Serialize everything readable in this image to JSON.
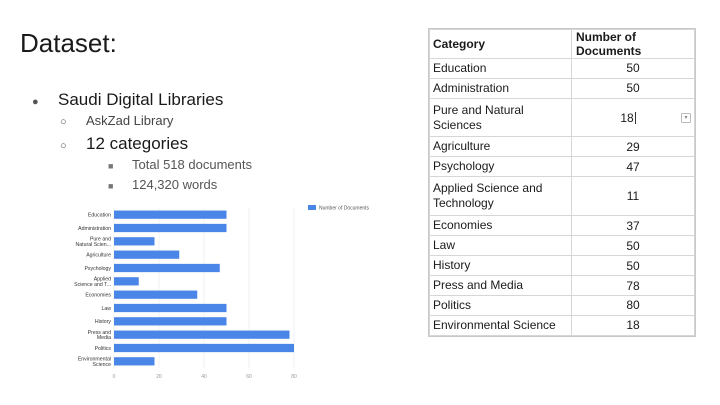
{
  "slide": {
    "title": "Dataset:",
    "bullets": {
      "level1": "Saudi Digital Libraries",
      "level2_first": "AskZad Library",
      "level2_second": "12 categories",
      "level3_first": "Total 518 documents",
      "level3_second": "124,320 words"
    },
    "markers": {
      "disc": "●",
      "circle": "○",
      "square": "■"
    }
  },
  "table": {
    "headers": [
      "Category",
      "Number of Documents"
    ],
    "rows": [
      {
        "category": "Education",
        "count": "50"
      },
      {
        "category": "Administration",
        "count": "50"
      },
      {
        "category": "Pure and Natural Sciences",
        "count": "18"
      },
      {
        "category": "Agriculture",
        "count": "29"
      },
      {
        "category": "Psychology",
        "count": "47"
      },
      {
        "category": "Applied Science and Technology",
        "count": "11"
      },
      {
        "category": "Economies",
        "count": "37"
      },
      {
        "category": "Law",
        "count": "50"
      },
      {
        "category": "History",
        "count": "50"
      },
      {
        "category": "Press and Media",
        "count": "78"
      },
      {
        "category": "Politics",
        "count": "80"
      },
      {
        "category": "Environmental Science",
        "count": "18"
      }
    ],
    "selected_row": 2
  },
  "chart_data": {
    "type": "bar",
    "orientation": "horizontal",
    "categories": [
      [
        "Education"
      ],
      [
        "Administration"
      ],
      [
        "Pure and",
        "Natural Scien..."
      ],
      [
        "Agriculture"
      ],
      [
        "Psychology"
      ],
      [
        "Applied",
        "Science and T..."
      ],
      [
        "Economies"
      ],
      [
        "Law"
      ],
      [
        "History"
      ],
      [
        "Press and",
        "Media"
      ],
      [
        "Politics"
      ],
      [
        "Environmental",
        "Science"
      ]
    ],
    "series": [
      {
        "name": "Number of Documents",
        "values": [
          50,
          50,
          18,
          29,
          47,
          11,
          37,
          50,
          50,
          78,
          80,
          18
        ]
      }
    ],
    "xticks": [
      "0",
      "20",
      "40",
      "60",
      "80"
    ],
    "xlim": [
      0,
      80
    ],
    "legend": "top-right",
    "color": "#4a86e8",
    "grid": true
  }
}
